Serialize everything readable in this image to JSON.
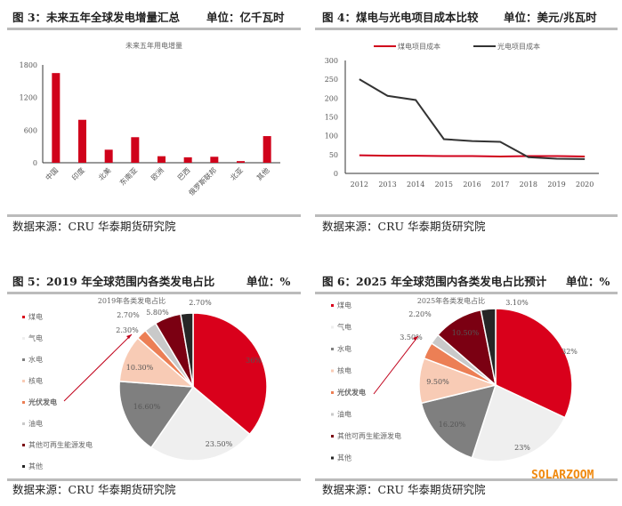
{
  "footer_source": "数据来源：CRU 华泰期货研究院",
  "watermark": "SOLARZOOM",
  "chart_data": [
    {
      "type": "bar",
      "figure_title": "图 3：未来五年全球发电增量汇总",
      "unit": "单位：亿千瓦时",
      "title": "未来五年用电增量",
      "categories": [
        "中国",
        "印度",
        "北美",
        "东南亚",
        "欧洲",
        "巴西",
        "俄罗斯联邦",
        "北亚",
        "其他"
      ],
      "values": [
        1650,
        790,
        240,
        470,
        120,
        100,
        110,
        30,
        490
      ],
      "ylim": [
        0,
        1800
      ],
      "yticks": [
        "0",
        "600",
        "1200",
        "1800"
      ],
      "color": "#d0021b"
    },
    {
      "type": "line",
      "figure_title": "图 4：煤电与光电项目成本比较",
      "unit": "单位：美元/兆瓦时",
      "x": [
        "2012",
        "2013",
        "2014",
        "2015",
        "2016",
        "2017",
        "2018",
        "2019",
        "2020"
      ],
      "ylim": [
        0,
        300
      ],
      "yticks": [
        "0",
        "50",
        "100",
        "150",
        "200",
        "250",
        "300"
      ],
      "legend": "top",
      "series": [
        {
          "name": "煤电项目成本",
          "color": "#d0021b",
          "values": [
            48,
            47,
            47,
            46,
            46,
            45,
            46,
            46,
            45
          ]
        },
        {
          "name": "光电项目成本",
          "color": "#333333",
          "values": [
            250,
            206,
            195,
            91,
            86,
            84,
            43,
            39,
            38
          ]
        }
      ]
    },
    {
      "type": "pie",
      "figure_title": "图 5：2019 年全球范围内各类发电占比",
      "unit": "单位：%",
      "title": "2019年各类发电占比",
      "categories": [
        "煤电",
        "气电",
        "水电",
        "核电",
        "光伏发电",
        "油电",
        "其他可再生能源发电",
        "其他"
      ],
      "values": [
        36.1,
        23.5,
        16.6,
        10.3,
        2.3,
        2.7,
        5.8,
        2.7
      ],
      "labels": [
        "36%",
        "23.50%",
        "16.60%",
        "10.30%",
        "2.30%",
        "2.70%",
        "5.80%",
        "2.70%"
      ],
      "colors": [
        "#d9001b",
        "#efefef",
        "#7f7f7f",
        "#f8cbb5",
        "#ec7f55",
        "#c9c9c9",
        "#7b0012",
        "#262626"
      ],
      "highlight": "光伏发电"
    },
    {
      "type": "pie",
      "figure_title": "图 6：2025 年全球范围内各类发电占比预计",
      "unit": "单位：%",
      "title": "2025年各类发电占比",
      "categories": [
        "煤电",
        "气电",
        "水电",
        "核电",
        "光伏发电",
        "油电",
        "其他可再生能源发电",
        "其他"
      ],
      "values": [
        32,
        23,
        16.2,
        9.5,
        3.5,
        2.2,
        10.5,
        3.1
      ],
      "labels": [
        "32%",
        "23%",
        "16.20%",
        "9.50%",
        "3.50%",
        "2.20%",
        "10.50%",
        "3.10%"
      ],
      "colors": [
        "#d9001b",
        "#efefef",
        "#7f7f7f",
        "#f8cbb5",
        "#ec7f55",
        "#c9c9c9",
        "#7b0012",
        "#262626"
      ],
      "highlight": "光伏发电"
    }
  ]
}
